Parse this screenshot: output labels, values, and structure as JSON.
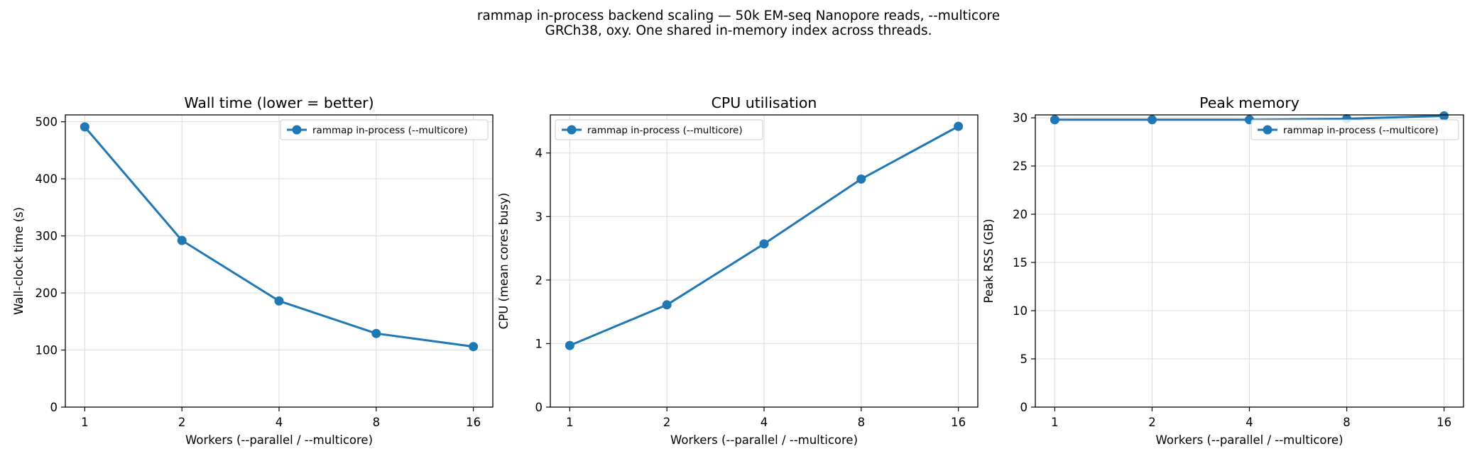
{
  "figure": {
    "suptitle_line1": "rammap in-process backend scaling — 50k EM-seq Nanopore reads, --multicore",
    "suptitle_line2": "GRCh38, oxy. One shared in-memory index across threads."
  },
  "colors": {
    "series": "#1f77b4",
    "grid": "#dddddd",
    "axis": "#000000"
  },
  "chart_data": [
    {
      "type": "line",
      "title": "Wall time  (lower = better)",
      "xlabel": "Workers  (--parallel / --multicore)",
      "ylabel": "Wall-clock time (s)",
      "categories": [
        "1",
        "2",
        "4",
        "8",
        "16"
      ],
      "x": [
        1,
        2,
        4,
        8,
        16
      ],
      "x_scale": "log2",
      "ylim": [
        0,
        512
      ],
      "yticks": [
        0,
        100,
        200,
        300,
        400,
        500
      ],
      "grid": true,
      "legend": "upper right",
      "series": [
        {
          "name": "rammap in-process (--multicore)",
          "values": [
            491,
            292,
            186,
            129,
            106
          ]
        }
      ]
    },
    {
      "type": "line",
      "title": "CPU utilisation",
      "xlabel": "Workers  (--parallel / --multicore)",
      "ylabel": "CPU (mean cores busy)",
      "categories": [
        "1",
        "2",
        "4",
        "8",
        "16"
      ],
      "x": [
        1,
        2,
        4,
        8,
        16
      ],
      "x_scale": "log2",
      "ylim": [
        0,
        4.6
      ],
      "yticks": [
        0,
        1,
        2,
        3,
        4
      ],
      "grid": true,
      "legend": "upper left",
      "series": [
        {
          "name": "rammap in-process (--multicore)",
          "values": [
            0.97,
            1.61,
            2.57,
            3.59,
            4.42
          ]
        }
      ]
    },
    {
      "type": "line",
      "title": "Peak memory",
      "xlabel": "Workers  (--parallel / --multicore)",
      "ylabel": "Peak RSS (GB)",
      "categories": [
        "1",
        "2",
        "4",
        "8",
        "16"
      ],
      "x": [
        1,
        2,
        4,
        8,
        16
      ],
      "x_scale": "log2",
      "ylim": [
        0,
        30.3
      ],
      "yticks": [
        0,
        5,
        10,
        15,
        20,
        25,
        30
      ],
      "grid": true,
      "legend": "upper right",
      "series": [
        {
          "name": "rammap in-process (--multicore)",
          "values": [
            29.8,
            29.8,
            29.8,
            29.9,
            30.2
          ]
        }
      ]
    }
  ]
}
